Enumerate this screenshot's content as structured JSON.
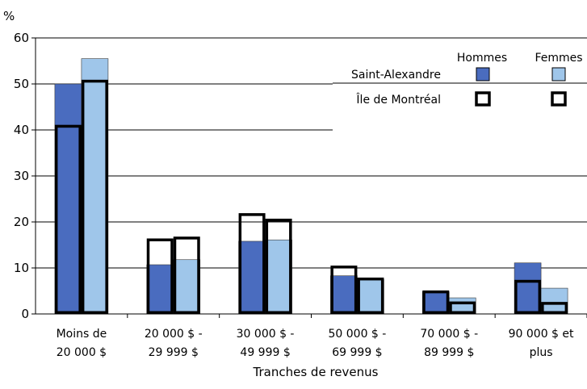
{
  "chart_data": {
    "type": "bar",
    "title": "",
    "ylabel": "%",
    "xlabel": "Tranches de revenus",
    "ylim": [
      0,
      60
    ],
    "yticks": [
      0,
      10,
      20,
      30,
      40,
      50,
      60
    ],
    "grid": true,
    "legend_position": "top-right",
    "categories": [
      [
        "Moins de",
        "20 000 $"
      ],
      [
        "20 000 $ -",
        "29 999 $"
      ],
      [
        "30 000 $ -",
        "49 999 $"
      ],
      [
        "50 000 $ -",
        "69 999 $"
      ],
      [
        "70 000 $ -",
        "89 999 $"
      ],
      [
        "90 000 $ et",
        "plus"
      ]
    ],
    "legend": {
      "column_headers": [
        "Hommes",
        "Femmes"
      ],
      "row_labels": [
        "Saint-Alexandre",
        "Île de Montréal"
      ]
    },
    "series": [
      {
        "name": "Saint-Alexandre Hommes",
        "values": [
          50,
          10.7,
          15.8,
          8.3,
          4.8,
          11.1
        ],
        "color": "#4a6cbf"
      },
      {
        "name": "Saint-Alexandre Femmes",
        "values": [
          55.5,
          11.8,
          16.1,
          7.5,
          3.5,
          5.6
        ],
        "color": "#9fc6ea"
      },
      {
        "name": "Île de Montréal Hommes",
        "values": [
          40.8,
          16.1,
          21.6,
          10.2,
          4.8,
          7.1
        ],
        "color": "none"
      },
      {
        "name": "Île de Montréal Femmes",
        "values": [
          50.6,
          16.5,
          20.4,
          7.6,
          2.4,
          2.3
        ],
        "color": "none"
      }
    ],
    "colors": {
      "hommes": "#4a6cbf",
      "femmes": "#9fc6ea",
      "outline": "#000000"
    }
  }
}
